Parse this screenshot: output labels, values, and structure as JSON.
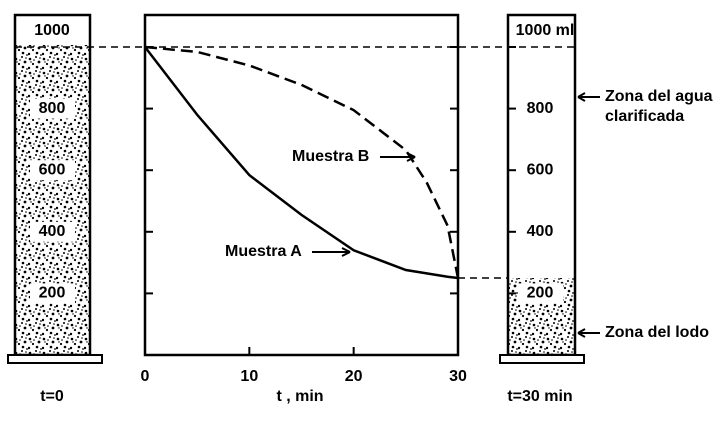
{
  "chart_data": {
    "type": "line",
    "x_label": "t , min",
    "x": [
      0,
      5,
      10,
      15,
      20,
      25,
      27,
      29,
      30
    ],
    "series": [
      {
        "name": "Muestra A",
        "color": "#000000",
        "dash": false,
        "values": [
          1000,
          780,
          584,
          455,
          340,
          276,
          265,
          254,
          250
        ]
      },
      {
        "name": "Muestra B",
        "color": "#000000",
        "dash": true,
        "values": [
          1000,
          984,
          940,
          877,
          795,
          665,
          560,
          420,
          250
        ]
      }
    ],
    "xlim": [
      0,
      30
    ],
    "xticks": [
      0,
      10,
      20,
      30
    ],
    "ylim": [
      0,
      1000
    ],
    "yticks": [
      200,
      400,
      600,
      800,
      1000
    ],
    "left_cylinder": {
      "label": "t=0"
    },
    "right_cylinder": {
      "label": "t=30 min",
      "top_label": "1000 ml",
      "water_zone": [
        "Zona del agua",
        "clarificada"
      ],
      "sludge_zone": "Zona del lodo"
    }
  }
}
